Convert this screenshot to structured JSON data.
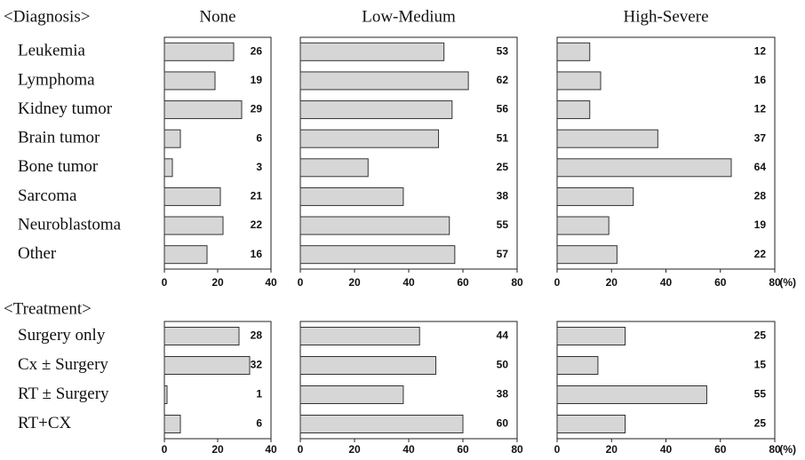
{
  "chart_data": {
    "type": "bar",
    "orientation": "horizontal",
    "bar_color": "#d6d6d6",
    "column_titles": [
      "None",
      "Low-Medium",
      "High-Severe"
    ],
    "unit": "(%)",
    "groups": [
      {
        "title": "<Diagnosis>",
        "categories": [
          "Leukemia",
          "Lymphoma",
          "Kidney tumor",
          "Brain tumor",
          "Bone tumor",
          "Sarcoma",
          "Neuroblastoma",
          "Other"
        ],
        "panels": [
          {
            "values": [
              26,
              19,
              29,
              6,
              3,
              21,
              22,
              16
            ],
            "xlim": [
              0,
              40
            ],
            "xticks": [
              0,
              20,
              40
            ]
          },
          {
            "values": [
              53,
              62,
              56,
              51,
              25,
              38,
              55,
              57
            ],
            "xlim": [
              0,
              80
            ],
            "xticks": [
              0,
              20,
              40,
              60,
              80
            ]
          },
          {
            "values": [
              12,
              16,
              12,
              37,
              64,
              28,
              19,
              22
            ],
            "xlim": [
              0,
              80
            ],
            "xticks": [
              0,
              20,
              40,
              60,
              80
            ]
          }
        ]
      },
      {
        "title": "<Treatment>",
        "categories": [
          "Surgery only",
          "Cx ± Surgery",
          "RT ± Surgery",
          "RT+CX"
        ],
        "panels": [
          {
            "values": [
              28,
              32,
              1,
              6
            ],
            "xlim": [
              0,
              40
            ],
            "xticks": [
              0,
              20,
              40
            ]
          },
          {
            "values": [
              44,
              50,
              38,
              60
            ],
            "xlim": [
              0,
              80
            ],
            "xticks": [
              0,
              20,
              40,
              60,
              80
            ]
          },
          {
            "values": [
              25,
              15,
              55,
              25
            ],
            "xlim": [
              0,
              80
            ],
            "xticks": [
              0,
              20,
              40,
              60,
              80
            ]
          }
        ]
      }
    ]
  }
}
